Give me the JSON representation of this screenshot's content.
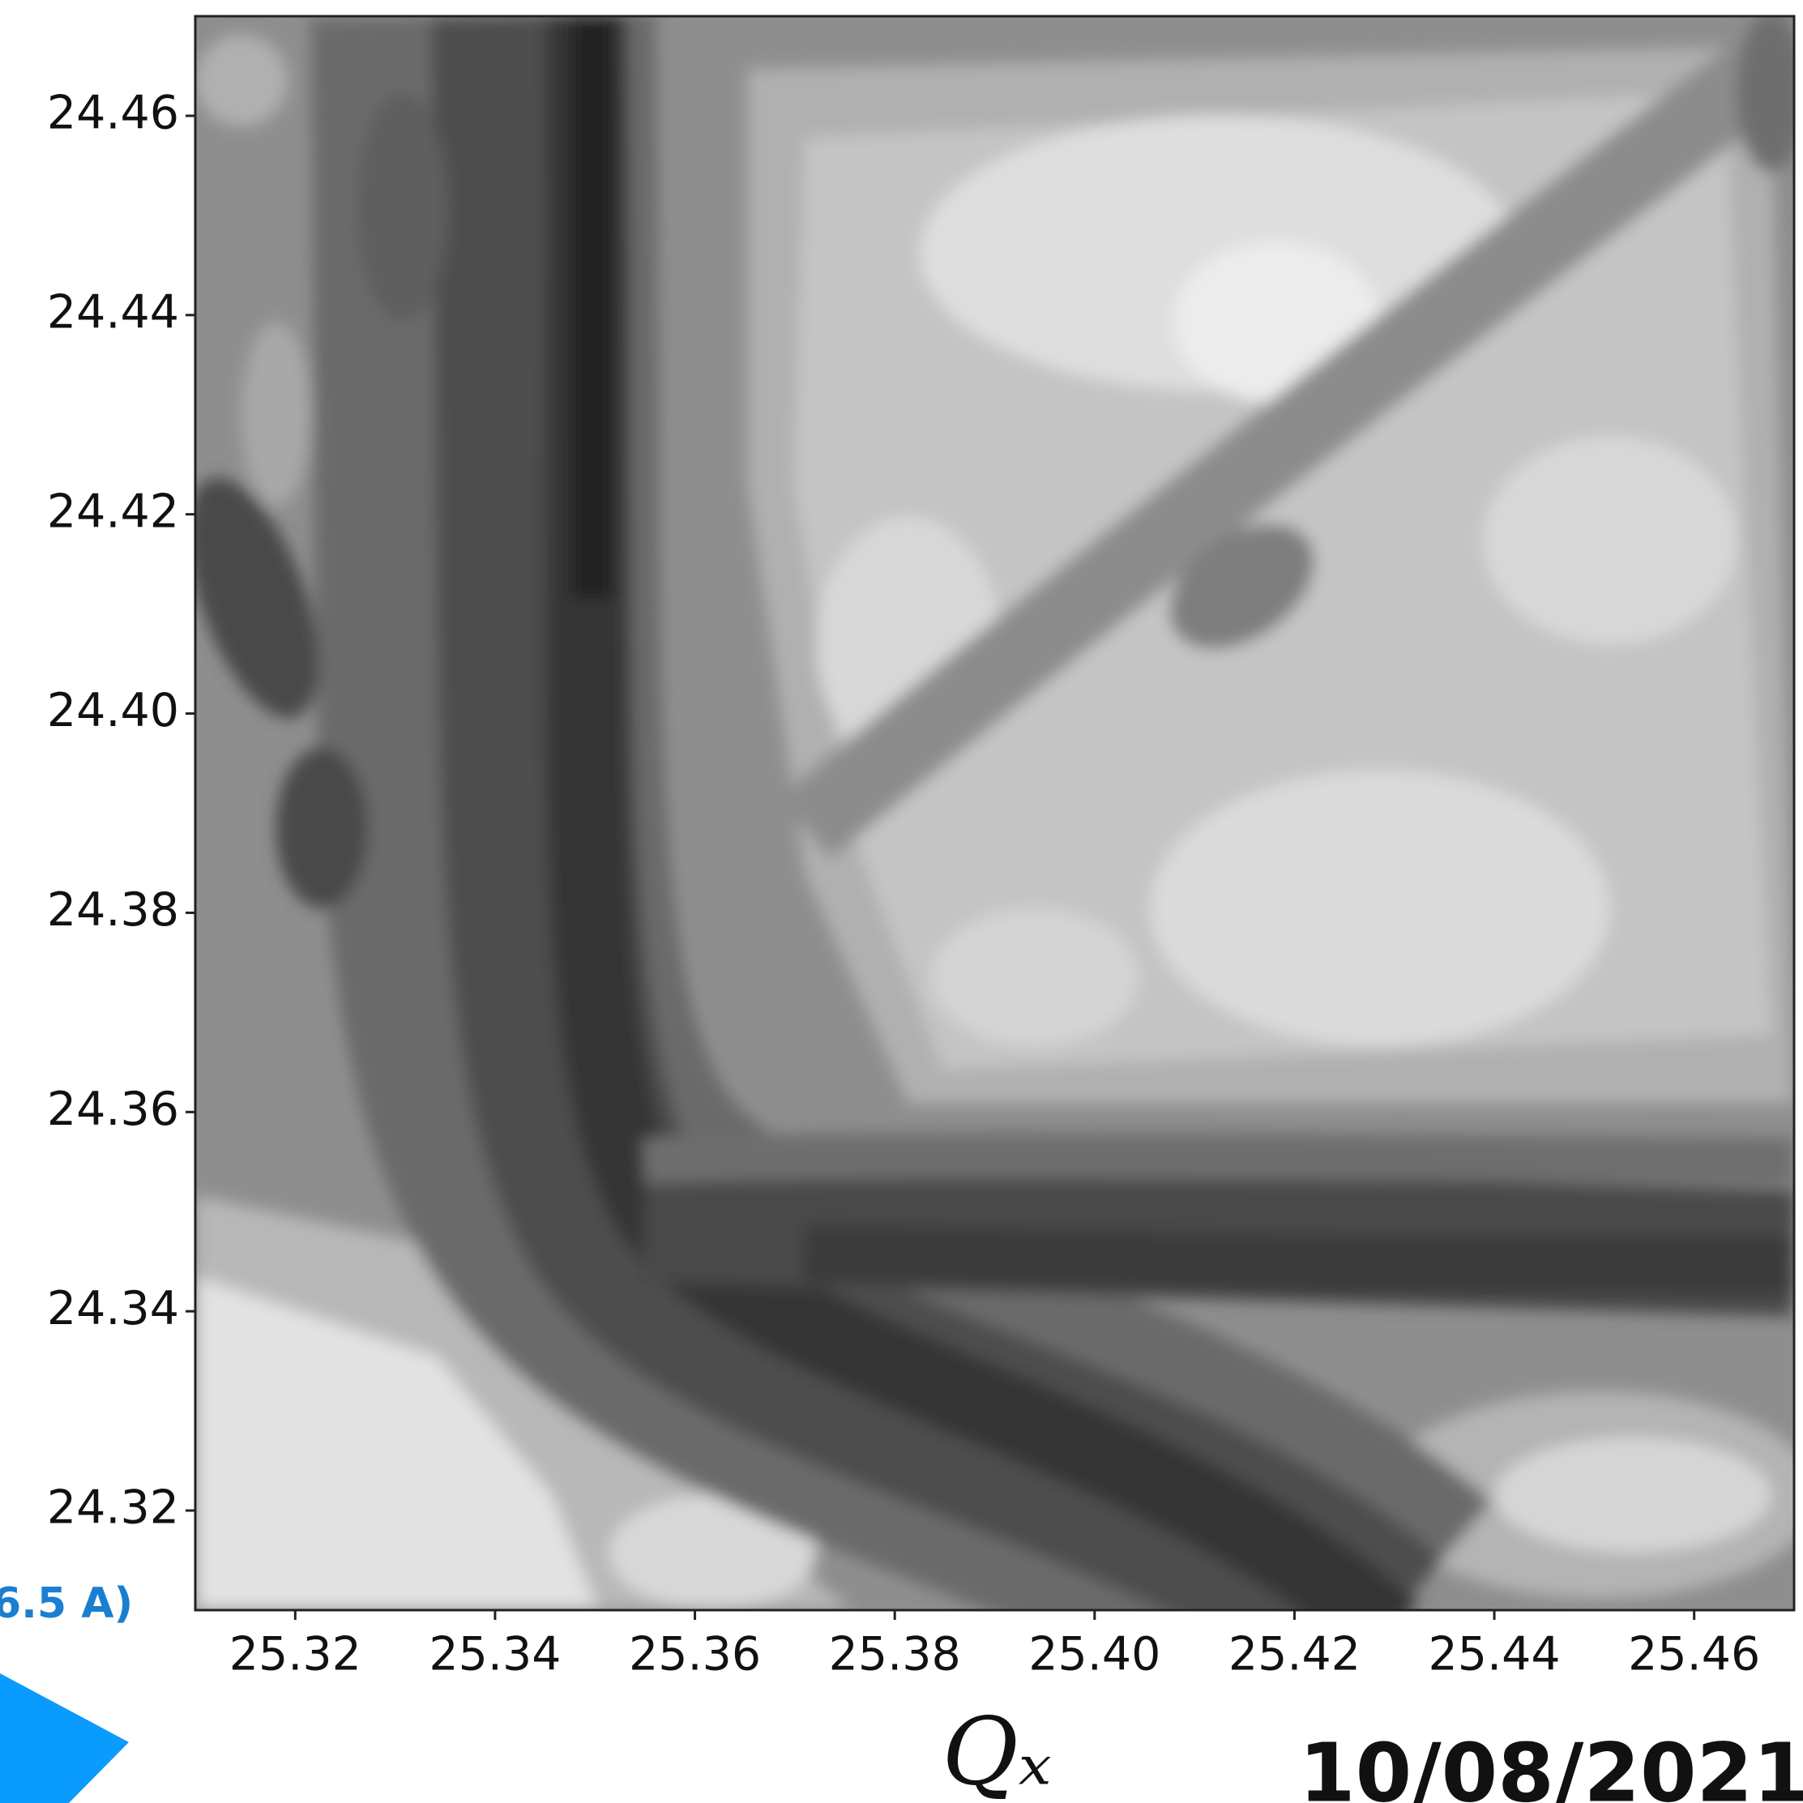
{
  "chart_data": {
    "type": "contour",
    "xlabel": "Qₓ",
    "xlim": [
      25.31,
      25.47
    ],
    "ylim": [
      24.31,
      24.47
    ],
    "xticks": [
      25.32,
      25.34,
      25.36,
      25.38,
      {
        "value": 25.4,
        "label": "25.40"
      },
      25.42,
      25.44,
      25.46
    ],
    "yticks": [
      24.32,
      24.34,
      24.36,
      24.38,
      {
        "value": 24.4,
        "label": "24.40"
      },
      24.42,
      24.44,
      24.46
    ],
    "annotations": [
      "6.5 A)",
      "10/08/2021"
    ]
  }
}
